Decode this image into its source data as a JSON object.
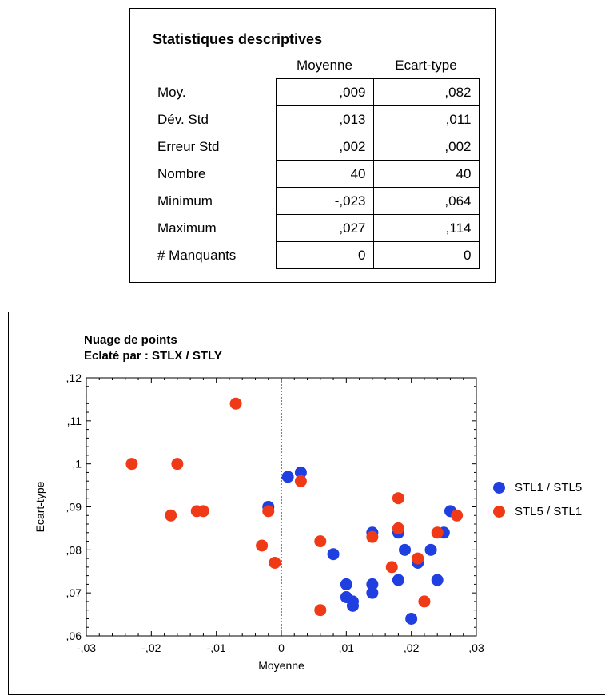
{
  "stats": {
    "title": "Statistiques descriptives",
    "columns": [
      "Moyenne",
      "Ecart-type"
    ],
    "rows": [
      {
        "label": "Moy.",
        "mean": ",009",
        "sd": ",082"
      },
      {
        "label": "Dév. Std",
        "mean": ",013",
        "sd": ",011"
      },
      {
        "label": "Erreur Std",
        "mean": ",002",
        "sd": ",002"
      },
      {
        "label": "Nombre",
        "mean": "40",
        "sd": "40"
      },
      {
        "label": "Minimum",
        "mean": "-,023",
        "sd": ",064"
      },
      {
        "label": "Maximum",
        "mean": ",027",
        "sd": ",114"
      },
      {
        "label": "# Manquants",
        "mean": "0",
        "sd": "0"
      }
    ]
  },
  "chart_data": {
    "type": "scatter",
    "title": "Nuage de points",
    "subtitle": "Eclaté par : STLX / STLY",
    "xlabel": "Moyenne",
    "ylabel": "Ecart-type",
    "xlim": [
      -0.03,
      0.03
    ],
    "ylim": [
      0.06,
      0.12
    ],
    "x_ticks": [
      -0.03,
      -0.02,
      -0.01,
      0,
      0.01,
      0.02,
      0.03
    ],
    "x_tick_labels": [
      "-,03",
      "-,02",
      "-,01",
      "0",
      ",01",
      ",02",
      ",03"
    ],
    "y_ticks": [
      0.06,
      0.07,
      0.08,
      0.09,
      0.1,
      0.11,
      0.12
    ],
    "y_tick_labels": [
      ",06",
      ",07",
      ",08",
      ",09",
      ",1",
      ",11",
      ",12"
    ],
    "zero_line": true,
    "legend_position": "right",
    "series": [
      {
        "name": "STL1 / STL5",
        "color": "#1f3fe0",
        "points": [
          [
            -0.002,
            0.09
          ],
          [
            0.001,
            0.097
          ],
          [
            0.003,
            0.098
          ],
          [
            0.008,
            0.079
          ],
          [
            0.01,
            0.072
          ],
          [
            0.01,
            0.069
          ],
          [
            0.011,
            0.068
          ],
          [
            0.011,
            0.067
          ],
          [
            0.014,
            0.084
          ],
          [
            0.014,
            0.072
          ],
          [
            0.014,
            0.07
          ],
          [
            0.018,
            0.084
          ],
          [
            0.018,
            0.073
          ],
          [
            0.019,
            0.08
          ],
          [
            0.02,
            0.064
          ],
          [
            0.021,
            0.077
          ],
          [
            0.023,
            0.08
          ],
          [
            0.024,
            0.073
          ],
          [
            0.025,
            0.084
          ],
          [
            0.026,
            0.089
          ]
        ]
      },
      {
        "name": "STL5 / STL1",
        "color": "#f03a17",
        "points": [
          [
            -0.023,
            0.1
          ],
          [
            -0.016,
            0.1
          ],
          [
            -0.017,
            0.088
          ],
          [
            -0.013,
            0.089
          ],
          [
            -0.012,
            0.089
          ],
          [
            -0.007,
            0.114
          ],
          [
            -0.003,
            0.081
          ],
          [
            -0.002,
            0.089
          ],
          [
            -0.001,
            0.077
          ],
          [
            0.003,
            0.096
          ],
          [
            0.006,
            0.082
          ],
          [
            0.006,
            0.066
          ],
          [
            0.014,
            0.083
          ],
          [
            0.017,
            0.076
          ],
          [
            0.018,
            0.085
          ],
          [
            0.018,
            0.092
          ],
          [
            0.021,
            0.078
          ],
          [
            0.022,
            0.068
          ],
          [
            0.024,
            0.084
          ],
          [
            0.027,
            0.088
          ]
        ]
      }
    ]
  }
}
